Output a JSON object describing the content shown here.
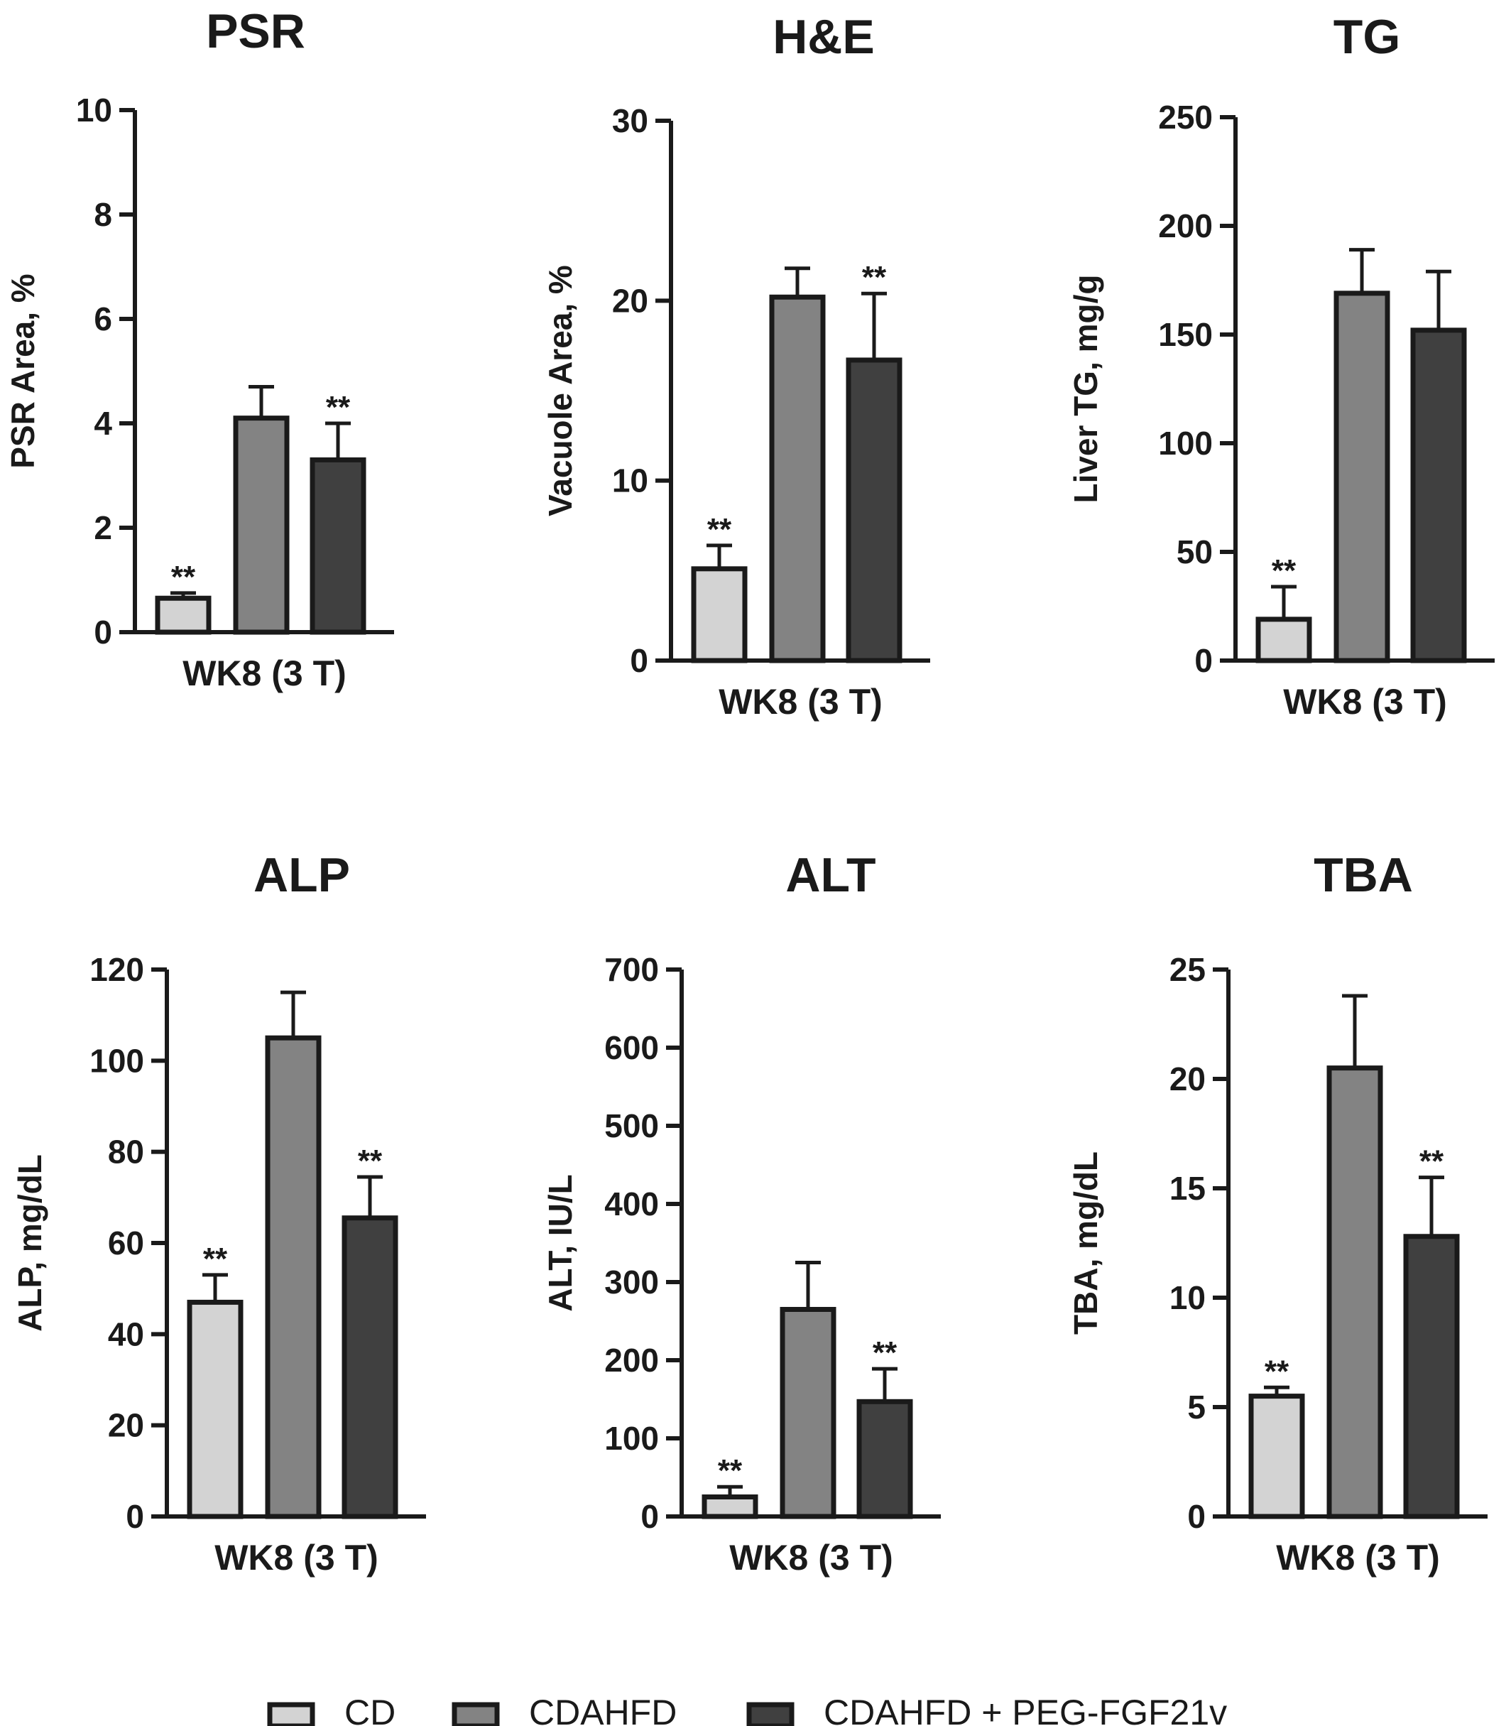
{
  "colors": {
    "CD": "#d3d3d3",
    "CDAHFD": "#838383",
    "CDAHFD + PEG-FGF21v": "#404040",
    "stroke": "#1a1a1a"
  },
  "legend": {
    "position": "bottom-center",
    "items": [
      "CD",
      "CDAHFD",
      "CDAHFD + PEG-FGF21v"
    ]
  },
  "chart_data": [
    {
      "type": "bar",
      "title": "PSR",
      "ylabel": "PSR Area, %",
      "xlabel": "WK8 (3 T)",
      "ylim": [
        0,
        10
      ],
      "yticks": [
        "0",
        "2",
        "4",
        "6",
        "8",
        "10"
      ],
      "grid": false,
      "categories": [
        "CD",
        "CDAHFD",
        "CDAHFD + PEG-FGF21v"
      ],
      "values": [
        0.65,
        4.1,
        3.3
      ],
      "errors": [
        0.1,
        0.6,
        0.7
      ],
      "significance": [
        "**",
        "",
        "**"
      ]
    },
    {
      "type": "bar",
      "title": "H&E",
      "ylabel": "Vacuole Area, %",
      "xlabel": "WK8 (3 T)",
      "ylim": [
        0,
        30
      ],
      "yticks": [
        "0",
        "10",
        "20",
        "30"
      ],
      "grid": false,
      "categories": [
        "CD",
        "CDAHFD",
        "CDAHFD + PEG-FGF21v"
      ],
      "values": [
        5.1,
        20.2,
        16.7
      ],
      "errors": [
        1.3,
        1.6,
        3.7
      ],
      "significance": [
        "**",
        "",
        "**"
      ]
    },
    {
      "type": "bar",
      "title": "TG",
      "ylabel": "Liver TG, mg/g",
      "xlabel": "WK8 (3 T)",
      "ylim": [
        0,
        250
      ],
      "yticks": [
        "0",
        "50",
        "100",
        "150",
        "200",
        "250"
      ],
      "grid": false,
      "categories": [
        "CD",
        "CDAHFD",
        "CDAHFD + PEG-FGF21v"
      ],
      "values": [
        19,
        169,
        152
      ],
      "errors": [
        15,
        20,
        27
      ],
      "significance": [
        "**",
        "",
        ""
      ]
    },
    {
      "type": "bar",
      "title": "ALP",
      "ylabel": "ALP, mg/dL",
      "xlabel": "WK8 (3 T)",
      "ylim": [
        0,
        120
      ],
      "yticks": [
        "0",
        "20",
        "40",
        "60",
        "80",
        "100",
        "120"
      ],
      "grid": false,
      "categories": [
        "CD",
        "CDAHFD",
        "CDAHFD + PEG-FGF21v"
      ],
      "values": [
        47,
        105,
        65.5
      ],
      "errors": [
        6,
        10,
        9
      ],
      "significance": [
        "**",
        "",
        "**"
      ]
    },
    {
      "type": "bar",
      "title": "ALT",
      "ylabel": "ALT, IU/L",
      "xlabel": "WK8 (3 T)",
      "ylim": [
        0,
        700
      ],
      "yticks": [
        "0",
        "100",
        "200",
        "300",
        "400",
        "500",
        "600",
        "700"
      ],
      "grid": false,
      "categories": [
        "CD",
        "CDAHFD",
        "CDAHFD + PEG-FGF21v"
      ],
      "values": [
        25,
        265,
        147
      ],
      "errors": [
        13,
        60,
        42
      ],
      "significance": [
        "**",
        "",
        "**"
      ]
    },
    {
      "type": "bar",
      "title": "TBA",
      "ylabel": "TBA, mg/dL",
      "xlabel": "WK8 (3 T)",
      "ylim": [
        0,
        25
      ],
      "yticks": [
        "0",
        "5",
        "10",
        "15",
        "20",
        "25"
      ],
      "grid": false,
      "categories": [
        "CD",
        "CDAHFD",
        "CDAHFD + PEG-FGF21v"
      ],
      "values": [
        5.5,
        20.5,
        12.8
      ],
      "errors": [
        0.4,
        3.3,
        2.7
      ],
      "significance": [
        "**",
        "",
        "**"
      ]
    }
  ]
}
